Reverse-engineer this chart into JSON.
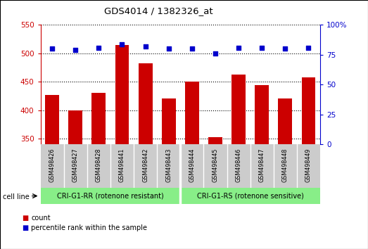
{
  "title": "GDS4014 / 1382326_at",
  "samples": [
    "GSM498426",
    "GSM498427",
    "GSM498428",
    "GSM498441",
    "GSM498442",
    "GSM498443",
    "GSM498444",
    "GSM498445",
    "GSM498446",
    "GSM498447",
    "GSM498448",
    "GSM498449"
  ],
  "counts": [
    427,
    400,
    430,
    515,
    483,
    421,
    450,
    353,
    463,
    444,
    421,
    458
  ],
  "percentile_ranks": [
    80,
    79,
    81,
    84,
    82,
    80,
    80,
    76,
    81,
    81,
    80,
    81
  ],
  "bar_color": "#cc0000",
  "dot_color": "#0000cc",
  "ylim_left": [
    340,
    550
  ],
  "ylim_right": [
    0,
    100
  ],
  "yticks_left": [
    350,
    400,
    450,
    500,
    550
  ],
  "yticks_right": [
    0,
    25,
    50,
    75,
    100
  ],
  "group1_label": "CRI-G1-RR (rotenone resistant)",
  "group2_label": "CRI-G1-RS (rotenone sensitive)",
  "group1_count": 6,
  "group2_count": 6,
  "cell_line_label": "cell line",
  "legend_count_label": "count",
  "legend_percentile_label": "percentile rank within the sample",
  "group_bg_color": "#88ee88",
  "label_bg_color": "#cccccc",
  "plot_bg": "#ffffff",
  "left_axis_color": "#cc0000",
  "right_axis_color": "#0000cc",
  "bar_width": 0.6
}
